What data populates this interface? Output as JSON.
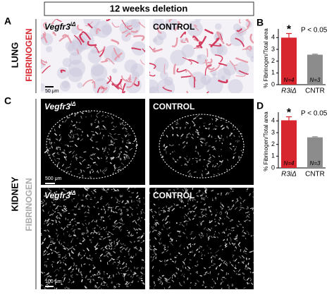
{
  "header": {
    "title": "12 weeks deletion"
  },
  "panels": {
    "a": {
      "letter": "A",
      "organ": "LUNG",
      "stain": "FIBRINOGEN",
      "left_label": "Vegfr3",
      "left_sup": "iΔ",
      "right_label": "CONTROL",
      "scale": "50 μm"
    },
    "c": {
      "letter": "C",
      "organ": "KIDNEY",
      "stain": "FIBRINOGEN",
      "left_label": "Vegfr3",
      "left_sup": "iΔ",
      "right_label": "CONTROL",
      "scale_top": "500 μm",
      "left_label_2": "Vegfr3",
      "left_sup_2": "iΔ",
      "right_label_2": "CONTROL",
      "scale_bottom": "100 μm"
    }
  },
  "chart_data": [
    {
      "type": "bar",
      "letter": "B",
      "y_label": "% Fibrinogen/Total area",
      "categories": [
        "R3iΔ",
        "CNTR"
      ],
      "values": [
        4.0,
        2.55
      ],
      "errors": [
        0.35,
        0.05
      ],
      "colors": [
        "#d7262e",
        "#8c8c8c"
      ],
      "n_labels": [
        "N=4",
        "N=3"
      ],
      "significance": "*",
      "p_label": "P < 0.05",
      "ylim": [
        0,
        4.5
      ],
      "yticks": [
        0,
        1,
        2,
        3,
        4
      ]
    },
    {
      "type": "bar",
      "letter": "D",
      "y_label": "% Fibrinogen/Total area",
      "categories": [
        "R3iΔ",
        "CNTR"
      ],
      "values": [
        4.05,
        2.6
      ],
      "errors": [
        0.3,
        0.05
      ],
      "colors": [
        "#d7262e",
        "#8c8c8c"
      ],
      "n_labels": [
        "N=4",
        "N=3"
      ],
      "significance": "*",
      "p_label": "P < 0.05",
      "ylim": [
        0,
        4.5
      ],
      "yticks": [
        0,
        1,
        2,
        3,
        4
      ]
    }
  ]
}
